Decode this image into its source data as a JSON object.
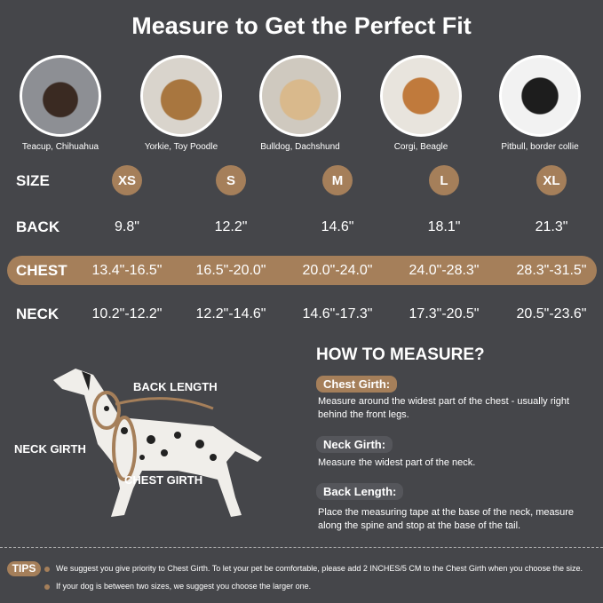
{
  "title": "Measure to Get the Perfect Fit",
  "breeds": [
    "Teacup, Chihuahua",
    "Yorkie, Toy Poodle",
    "Bulldog, Dachshund",
    "Corgi, Beagle",
    "Pitbull, border collie"
  ],
  "rows": {
    "size": {
      "label": "SIZE",
      "values": [
        "XS",
        "S",
        "M",
        "L",
        "XL"
      ]
    },
    "back": {
      "label": "BACK",
      "values": [
        "9.8\"",
        "12.2\"",
        "14.6\"",
        "18.1\"",
        "21.3\""
      ]
    },
    "chest": {
      "label": "CHEST",
      "values": [
        "13.4\"-16.5\"",
        "16.5\"-20.0\"",
        "20.0\"-24.0\"",
        "24.0\"-28.3\"",
        "28.3\"-31.5\""
      ]
    },
    "neck": {
      "label": "NECK",
      "values": [
        "10.2\"-12.2\"",
        "12.2\"-14.6\"",
        "14.6\"-17.3\"",
        "17.3\"-20.5\"",
        "20.5\"-23.6\""
      ]
    }
  },
  "diagram": {
    "back_length": "BACK LENGTH",
    "neck_girth": "NECK GIRTH",
    "chest_girth": "CHEST GIRTH"
  },
  "how": {
    "title": "HOW TO MEASURE?",
    "chest_label": "Chest Girth:",
    "chest_desc": "Measure around the widest part of the chest - usually right behind the front legs.",
    "neck_label": "Neck Girth:",
    "neck_desc": "Measure the widest part of the neck.",
    "back_label": "Back Length:",
    "back_desc": "Place the measuring tape at the base of the neck, measure along the spine and stop at the base of the tail."
  },
  "tips": {
    "label": "TIPS",
    "items": [
      "We suggest you give priority to Chest Girth. To let your pet be comfortable, please add 2 INCHES/5 CM to the Chest Girth when you choose the size.",
      "If your dog is between two sizes, we suggest you choose the larger one."
    ]
  },
  "colors": {
    "background": "#45464a",
    "accent": "#a57f5a"
  }
}
